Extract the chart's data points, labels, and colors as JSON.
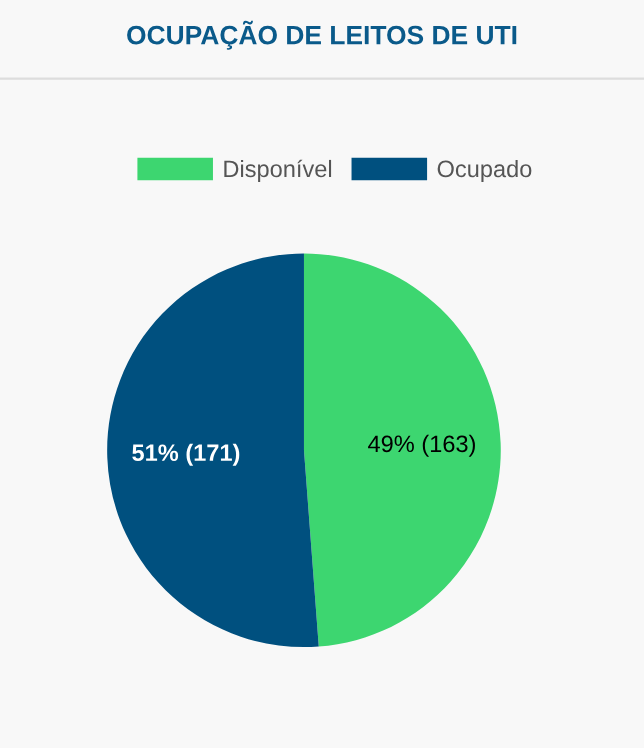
{
  "chart_data": {
    "type": "pie",
    "title": "OCUPAÇÃO DE LEITOS DE UTI",
    "categories": [
      "Disponível",
      "Ocupado"
    ],
    "values": [
      163,
      171
    ],
    "colors": [
      "#3dd670",
      "#00507f"
    ],
    "value_labels": [
      "49% (163)",
      "51% (171)"
    ],
    "legend": "top"
  }
}
